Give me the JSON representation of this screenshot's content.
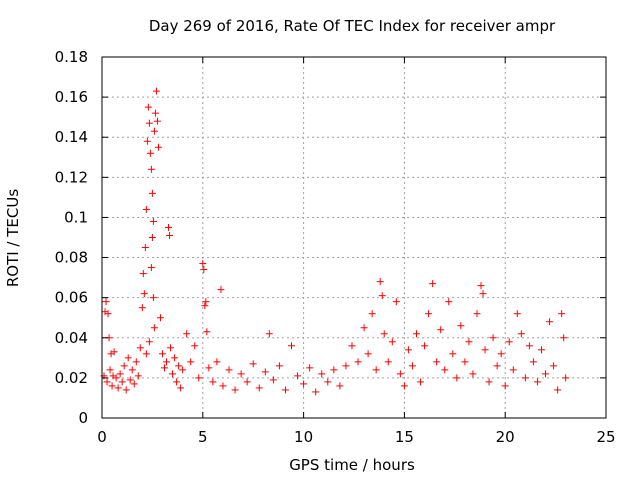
{
  "chart_data": {
    "type": "scatter",
    "title": "Day 269 of 2016, Rate Of TEC Index for receiver ampr",
    "xlabel": "GPS time / hours",
    "ylabel": "ROTI / TECUs",
    "xlim": [
      0,
      25
    ],
    "ylim": [
      0,
      0.18
    ],
    "xticks": [
      0,
      5,
      10,
      15,
      20,
      25
    ],
    "yticks": [
      0,
      0.02,
      0.04,
      0.06,
      0.08,
      0.1,
      0.12,
      0.14,
      0.16,
      0.18
    ],
    "xtick_labels": [
      "0",
      "5",
      "10",
      "15",
      "20",
      "25"
    ],
    "ytick_labels": [
      "0",
      "0.02",
      "0.04",
      "0.06",
      "0.08",
      "0.1",
      "0.12",
      "0.14",
      "0.16",
      "0.18"
    ],
    "grid": true,
    "marker": "+",
    "color": "#ff0000",
    "series": [
      {
        "name": "ROTI",
        "points": [
          [
            0.1,
            0.021
          ],
          [
            0.15,
            0.053
          ],
          [
            0.2,
            0.058
          ],
          [
            0.25,
            0.018
          ],
          [
            0.3,
            0.052
          ],
          [
            0.35,
            0.04
          ],
          [
            0.4,
            0.024
          ],
          [
            0.45,
            0.032
          ],
          [
            0.5,
            0.016
          ],
          [
            0.55,
            0.021
          ],
          [
            0.6,
            0.033
          ],
          [
            0.7,
            0.02
          ],
          [
            0.8,
            0.015
          ],
          [
            0.9,
            0.022
          ],
          [
            1.0,
            0.018
          ],
          [
            1.1,
            0.026
          ],
          [
            1.2,
            0.014
          ],
          [
            1.3,
            0.03
          ],
          [
            1.4,
            0.019
          ],
          [
            1.5,
            0.024
          ],
          [
            1.6,
            0.017
          ],
          [
            1.7,
            0.028
          ],
          [
            1.8,
            0.021
          ],
          [
            1.9,
            0.035
          ],
          [
            2.0,
            0.055
          ],
          [
            2.05,
            0.072
          ],
          [
            2.1,
            0.062
          ],
          [
            2.15,
            0.085
          ],
          [
            2.2,
            0.104
          ],
          [
            2.25,
            0.138
          ],
          [
            2.3,
            0.155
          ],
          [
            2.35,
            0.147
          ],
          [
            2.4,
            0.132
          ],
          [
            2.45,
            0.124
          ],
          [
            2.5,
            0.112
          ],
          [
            2.55,
            0.098
          ],
          [
            2.6,
            0.143
          ],
          [
            2.65,
            0.152
          ],
          [
            2.7,
            0.163
          ],
          [
            2.75,
            0.148
          ],
          [
            2.8,
            0.135
          ],
          [
            2.5,
            0.09
          ],
          [
            2.45,
            0.075
          ],
          [
            2.55,
            0.06
          ],
          [
            2.6,
            0.045
          ],
          [
            2.35,
            0.038
          ],
          [
            2.2,
            0.032
          ],
          [
            2.9,
            0.05
          ],
          [
            3.0,
            0.032
          ],
          [
            3.1,
            0.025
          ],
          [
            3.2,
            0.028
          ],
          [
            3.3,
            0.095
          ],
          [
            3.35,
            0.091
          ],
          [
            3.4,
            0.035
          ],
          [
            3.5,
            0.022
          ],
          [
            3.6,
            0.03
          ],
          [
            3.7,
            0.018
          ],
          [
            3.8,
            0.026
          ],
          [
            3.9,
            0.015
          ],
          [
            4.0,
            0.024
          ],
          [
            4.2,
            0.042
          ],
          [
            4.4,
            0.028
          ],
          [
            4.6,
            0.036
          ],
          [
            4.8,
            0.02
          ],
          [
            5.0,
            0.077
          ],
          [
            5.05,
            0.074
          ],
          [
            5.1,
            0.056
          ],
          [
            5.15,
            0.058
          ],
          [
            5.2,
            0.043
          ],
          [
            5.3,
            0.025
          ],
          [
            5.5,
            0.018
          ],
          [
            5.7,
            0.028
          ],
          [
            5.9,
            0.064
          ],
          [
            6.0,
            0.016
          ],
          [
            6.3,
            0.024
          ],
          [
            6.6,
            0.014
          ],
          [
            6.9,
            0.022
          ],
          [
            7.2,
            0.018
          ],
          [
            7.5,
            0.027
          ],
          [
            7.8,
            0.015
          ],
          [
            8.1,
            0.023
          ],
          [
            8.3,
            0.042
          ],
          [
            8.5,
            0.019
          ],
          [
            8.8,
            0.026
          ],
          [
            9.1,
            0.014
          ],
          [
            9.4,
            0.036
          ],
          [
            9.7,
            0.021
          ],
          [
            10.0,
            0.017
          ],
          [
            10.3,
            0.025
          ],
          [
            10.6,
            0.013
          ],
          [
            10.9,
            0.022
          ],
          [
            11.2,
            0.018
          ],
          [
            11.5,
            0.024
          ],
          [
            11.8,
            0.016
          ],
          [
            12.1,
            0.026
          ],
          [
            12.4,
            0.036
          ],
          [
            12.7,
            0.028
          ],
          [
            13.0,
            0.045
          ],
          [
            13.2,
            0.032
          ],
          [
            13.4,
            0.052
          ],
          [
            13.6,
            0.024
          ],
          [
            13.8,
            0.068
          ],
          [
            13.9,
            0.061
          ],
          [
            14.0,
            0.042
          ],
          [
            14.2,
            0.028
          ],
          [
            14.4,
            0.038
          ],
          [
            14.6,
            0.058
          ],
          [
            14.8,
            0.022
          ],
          [
            15.0,
            0.016
          ],
          [
            15.2,
            0.034
          ],
          [
            15.4,
            0.026
          ],
          [
            15.6,
            0.042
          ],
          [
            15.8,
            0.018
          ],
          [
            16.0,
            0.036
          ],
          [
            16.2,
            0.052
          ],
          [
            16.4,
            0.067
          ],
          [
            16.6,
            0.028
          ],
          [
            16.8,
            0.044
          ],
          [
            17.0,
            0.024
          ],
          [
            17.2,
            0.058
          ],
          [
            17.4,
            0.032
          ],
          [
            17.6,
            0.02
          ],
          [
            17.8,
            0.046
          ],
          [
            18.0,
            0.028
          ],
          [
            18.2,
            0.038
          ],
          [
            18.4,
            0.022
          ],
          [
            18.6,
            0.052
          ],
          [
            18.8,
            0.066
          ],
          [
            18.9,
            0.062
          ],
          [
            19.0,
            0.034
          ],
          [
            19.2,
            0.018
          ],
          [
            19.4,
            0.04
          ],
          [
            19.6,
            0.026
          ],
          [
            19.8,
            0.032
          ],
          [
            20.0,
            0.016
          ],
          [
            20.2,
            0.038
          ],
          [
            20.4,
            0.024
          ],
          [
            20.6,
            0.052
          ],
          [
            20.8,
            0.042
          ],
          [
            21.0,
            0.02
          ],
          [
            21.2,
            0.036
          ],
          [
            21.4,
            0.028
          ],
          [
            21.6,
            0.018
          ],
          [
            21.8,
            0.034
          ],
          [
            22.0,
            0.022
          ],
          [
            22.2,
            0.048
          ],
          [
            22.4,
            0.026
          ],
          [
            22.6,
            0.014
          ],
          [
            22.8,
            0.052
          ],
          [
            22.9,
            0.04
          ],
          [
            23.0,
            0.02
          ]
        ]
      }
    ]
  }
}
